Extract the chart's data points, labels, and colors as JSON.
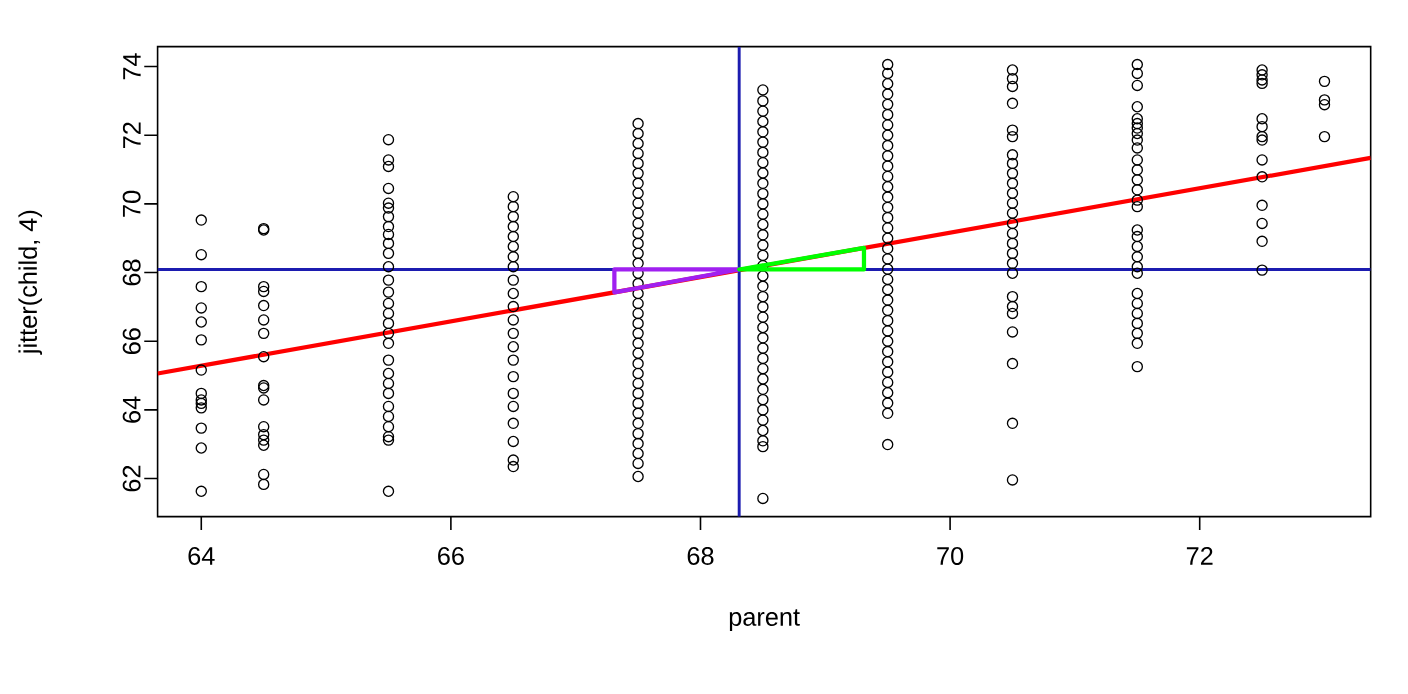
{
  "chart_data": {
    "type": "scatter",
    "xlabel": "parent",
    "ylabel": "jitter(child, 4)",
    "xlim": [
      63.65,
      73.37
    ],
    "ylim": [
      60.89,
      74.58
    ],
    "xticks": [
      64,
      66,
      68,
      70,
      72
    ],
    "yticks": [
      62,
      64,
      66,
      68,
      70,
      72,
      74
    ],
    "series": [
      {
        "marker": "circle",
        "color": "#000000",
        "x": [
          64,
          64,
          64,
          64,
          64,
          64,
          64,
          64,
          64,
          64,
          64,
          64,
          64,
          64,
          64.5,
          64.5,
          64.5,
          64.5,
          64.5,
          64.5,
          64.5,
          64.5,
          64.5,
          64.5,
          64.5,
          64.5,
          64.5,
          64.5,
          64.5,
          64.5,
          64.5,
          65.5,
          65.5,
          65.5,
          65.5,
          65.5,
          65.5,
          65.5,
          65.5,
          65.5,
          65.5,
          65.5,
          65.5,
          65.5,
          65.5,
          65.5,
          65.5,
          65.5,
          65.5,
          65.5,
          65.5,
          65.5,
          65.5,
          65.5,
          65.5,
          65.5,
          65.5,
          65.5,
          65.5,
          65.5,
          66.5,
          66.5,
          66.5,
          66.5,
          66.5,
          66.5,
          66.5,
          66.5,
          66.5,
          66.5,
          66.5,
          66.5,
          66.5,
          66.5,
          66.5,
          66.5,
          66.5,
          66.5,
          66.5,
          66.5,
          66.5,
          66.5,
          67.5,
          67.5,
          67.5,
          67.5,
          67.5,
          67.5,
          67.5,
          67.5,
          67.5,
          67.5,
          67.5,
          67.5,
          67.5,
          67.5,
          67.5,
          67.5,
          67.5,
          67.5,
          67.5,
          67.5,
          67.5,
          67.5,
          67.5,
          67.5,
          67.5,
          67.5,
          67.5,
          67.5,
          67.5,
          67.5,
          67.5,
          67.5,
          67.5,
          67.5,
          67.5,
          67.5,
          68.5,
          68.5,
          68.5,
          68.5,
          68.5,
          68.5,
          68.5,
          68.5,
          68.5,
          68.5,
          68.5,
          68.5,
          68.5,
          68.5,
          68.5,
          68.5,
          68.5,
          68.5,
          68.5,
          68.5,
          68.5,
          68.5,
          68.5,
          68.5,
          68.5,
          68.5,
          68.5,
          68.5,
          68.5,
          68.5,
          68.5,
          68.5,
          68.5,
          68.5,
          68.5,
          68.5,
          68.5,
          69.5,
          69.5,
          69.5,
          69.5,
          69.5,
          69.5,
          69.5,
          69.5,
          69.5,
          69.5,
          69.5,
          69.5,
          69.5,
          69.5,
          69.5,
          69.5,
          69.5,
          69.5,
          69.5,
          69.5,
          69.5,
          69.5,
          69.5,
          69.5,
          69.5,
          69.5,
          69.5,
          69.5,
          69.5,
          69.5,
          69.5,
          69.5,
          69.5,
          69.5,
          69.5,
          69.5,
          70.5,
          70.5,
          70.5,
          70.5,
          70.5,
          70.5,
          70.5,
          70.5,
          70.5,
          70.5,
          70.5,
          70.5,
          70.5,
          70.5,
          70.5,
          70.5,
          70.5,
          70.5,
          70.5,
          70.5,
          70.5,
          70.5,
          70.5,
          70.5,
          70.5,
          70.5,
          71.5,
          71.5,
          71.5,
          71.5,
          71.5,
          71.5,
          71.5,
          71.5,
          71.5,
          71.5,
          71.5,
          71.5,
          71.5,
          71.5,
          71.5,
          71.5,
          71.5,
          71.5,
          71.5,
          71.5,
          71.5,
          71.5,
          71.5,
          71.5,
          71.5,
          71.5,
          71.5,
          71.5,
          71.5,
          72.5,
          72.5,
          72.5,
          72.5,
          72.5,
          72.5,
          72.5,
          72.5,
          72.5,
          72.5,
          72.5,
          72.5,
          72.5,
          72.5,
          73,
          73,
          73,
          73
        ],
        "values": [
          69.53,
          68.52,
          67.59,
          66.97,
          66.56,
          66.04,
          65.16,
          64.48,
          64.29,
          64.19,
          64.06,
          63.47,
          62.89,
          61.63,
          69.28,
          69.24,
          67.59,
          67.45,
          67.04,
          66.62,
          66.23,
          65.55,
          64.71,
          64.64,
          64.29,
          63.51,
          63.28,
          63.12,
          62.97,
          62.12,
          61.83,
          71.87,
          71.28,
          71.09,
          70.45,
          70.02,
          69.88,
          69.63,
          69.34,
          69.11,
          68.85,
          68.56,
          68.17,
          67.78,
          67.43,
          67.1,
          66.81,
          66.52,
          66.23,
          65.94,
          65.45,
          65.06,
          64.77,
          64.48,
          64.1,
          63.81,
          63.51,
          63.22,
          63.12,
          61.63,
          70.21,
          69.92,
          69.63,
          69.34,
          69.05,
          68.76,
          68.46,
          68.17,
          67.78,
          67.39,
          67.01,
          66.62,
          66.23,
          65.84,
          65.45,
          64.97,
          64.48,
          64.1,
          63.61,
          63.08,
          62.54,
          62.35,
          72.34,
          72.05,
          71.76,
          71.47,
          71.18,
          70.89,
          70.6,
          70.31,
          70.02,
          69.73,
          69.43,
          69.14,
          68.85,
          68.56,
          68.27,
          67.98,
          67.68,
          67.39,
          67.1,
          66.81,
          66.52,
          66.23,
          65.94,
          65.65,
          65.35,
          65.06,
          64.77,
          64.48,
          64.19,
          63.9,
          63.61,
          63.31,
          63.02,
          62.73,
          62.44,
          62.06,
          73.32,
          73.0,
          72.7,
          72.4,
          72.1,
          71.8,
          71.5,
          71.2,
          70.9,
          70.6,
          70.3,
          70.0,
          69.7,
          69.4,
          69.1,
          68.8,
          68.5,
          68.2,
          67.9,
          67.6,
          67.3,
          67.0,
          66.7,
          66.4,
          66.1,
          65.8,
          65.5,
          65.2,
          64.9,
          64.6,
          64.3,
          64.0,
          63.7,
          63.4,
          63.1,
          62.93,
          61.42,
          74.06,
          73.8,
          73.5,
          73.2,
          72.9,
          72.6,
          72.3,
          72.0,
          71.7,
          71.4,
          71.1,
          70.8,
          70.5,
          70.2,
          69.9,
          69.6,
          69.3,
          69.0,
          68.7,
          68.4,
          68.1,
          67.8,
          67.5,
          67.2,
          66.9,
          66.6,
          66.3,
          66.0,
          65.7,
          65.4,
          65.1,
          64.8,
          64.5,
          64.2,
          63.9,
          62.99,
          73.9,
          73.65,
          73.42,
          72.93,
          72.15,
          71.96,
          71.43,
          71.18,
          70.89,
          70.6,
          70.31,
          70.02,
          69.73,
          69.43,
          69.14,
          68.85,
          68.56,
          68.27,
          67.98,
          67.3,
          67.01,
          66.81,
          66.27,
          65.35,
          63.61,
          61.96,
          74.06,
          73.8,
          73.45,
          72.83,
          72.48,
          72.34,
          72.21,
          72.05,
          71.86,
          71.63,
          71.28,
          70.99,
          70.7,
          70.41,
          70.11,
          69.92,
          69.24,
          69.05,
          68.76,
          68.46,
          68.17,
          67.98,
          67.39,
          67.1,
          66.81,
          66.52,
          66.23,
          65.94,
          65.26,
          73.9,
          73.76,
          73.61,
          73.51,
          72.48,
          72.25,
          71.96,
          71.86,
          71.28,
          70.79,
          69.96,
          69.43,
          68.91,
          68.07,
          73.57,
          73.03,
          72.89,
          71.96
        ]
      },
      {
        "type": "line",
        "marker": "none",
        "color": "#ff0000",
        "x": [
          63.65,
          73.37
        ],
        "values": [
          65.06,
          71.34
        ]
      }
    ],
    "ref_lines": [
      {
        "axis": "x",
        "value": 68.31,
        "color": "#1c1cb0"
      },
      {
        "axis": "y",
        "value": 68.09,
        "color": "#1c1cb0"
      }
    ]
  }
}
